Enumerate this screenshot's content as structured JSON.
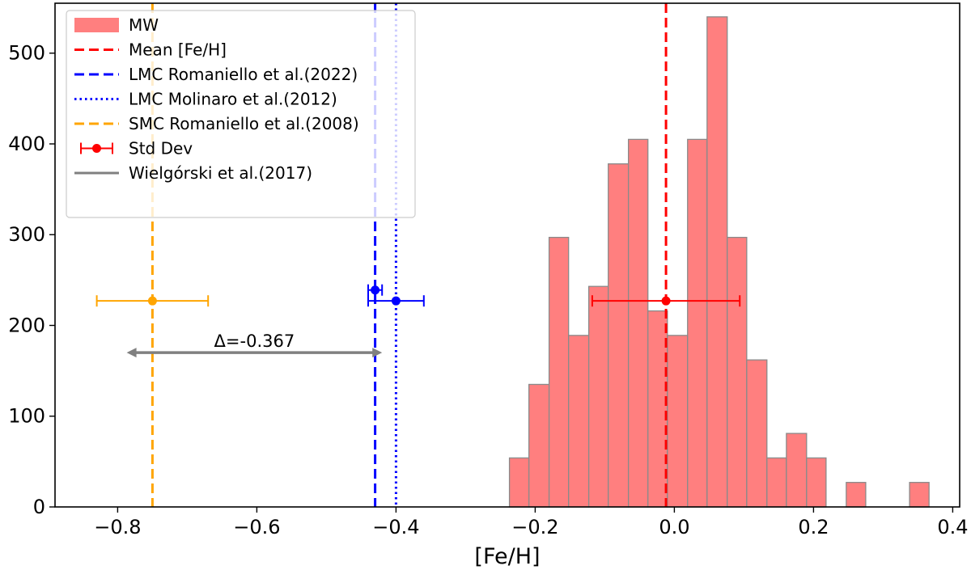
{
  "chart_data": {
    "type": "bar",
    "xlabel": "[Fe/H]",
    "ylabel": "",
    "xlim": [
      -0.89,
      0.41
    ],
    "ylim": [
      0,
      555
    ],
    "xticks": [
      -0.8,
      -0.6,
      -0.4,
      -0.2,
      0.0,
      0.2,
      0.4
    ],
    "xtick_labels": [
      "−0.8",
      "−0.6",
      "−0.4",
      "−0.2",
      "0.0",
      "0.2",
      "0.4"
    ],
    "yticks": [
      0,
      100,
      200,
      300,
      400,
      500
    ],
    "ytick_labels": [
      "0",
      "100",
      "200",
      "300",
      "400",
      "500"
    ],
    "histogram": {
      "name": "MW",
      "color": "#ff7f7f",
      "edge_color": "#8a8a8a",
      "bins": [
        {
          "left": -0.237,
          "right": -0.209,
          "count": 54
        },
        {
          "left": -0.209,
          "right": -0.18,
          "count": 135
        },
        {
          "left": -0.18,
          "right": -0.152,
          "count": 297
        },
        {
          "left": -0.152,
          "right": -0.123,
          "count": 189
        },
        {
          "left": -0.123,
          "right": -0.095,
          "count": 243
        },
        {
          "left": -0.095,
          "right": -0.066,
          "count": 378
        },
        {
          "left": -0.066,
          "right": -0.038,
          "count": 405
        },
        {
          "left": -0.038,
          "right": -0.01,
          "count": 216
        },
        {
          "left": -0.01,
          "right": 0.019,
          "count": 189
        },
        {
          "left": 0.019,
          "right": 0.047,
          "count": 405
        },
        {
          "left": 0.047,
          "right": 0.076,
          "count": 540
        },
        {
          "left": 0.076,
          "right": 0.104,
          "count": 297
        },
        {
          "left": 0.104,
          "right": 0.133,
          "count": 162
        },
        {
          "left": 0.133,
          "right": 0.161,
          "count": 54
        },
        {
          "left": 0.161,
          "right": 0.19,
          "count": 81
        },
        {
          "left": 0.19,
          "right": 0.218,
          "count": 54
        },
        {
          "left": 0.247,
          "right": 0.275,
          "count": 27
        },
        {
          "left": 0.338,
          "right": 0.366,
          "count": 27
        }
      ]
    },
    "vlines": [
      {
        "name": "Mean [Fe/H]",
        "x": -0.012,
        "color": "#ff0000",
        "style": "dashed"
      },
      {
        "name": "LMC Romaniello et al.(2022)",
        "x": -0.43,
        "color": "#0000ff",
        "style": "dashed"
      },
      {
        "name": "LMC Molinaro et al.(2012)",
        "x": -0.4,
        "color": "#0000ff",
        "style": "dotted"
      },
      {
        "name": "SMC Romaniello et al.(2008)",
        "x": -0.75,
        "color": "#ffa500",
        "style": "dashed"
      }
    ],
    "errorbars": [
      {
        "name": "MW",
        "x": -0.012,
        "y": 227,
        "xerr": 0.106,
        "color": "#ff0000"
      },
      {
        "name": "LMC Romaniello et al.(2022)",
        "x": -0.43,
        "y": 239,
        "xerr": 0.01,
        "color": "#0000ff"
      },
      {
        "name": "LMC Molinaro et al.(2012)",
        "x": -0.4,
        "y": 227,
        "xerr": 0.04,
        "color": "#0000ff"
      },
      {
        "name": "SMC Romaniello et al.(2008)",
        "x": -0.75,
        "y": 227,
        "xerr": 0.08,
        "color": "#ffa500"
      }
    ],
    "offset_arrow": {
      "name": "Wielgórski et al.(2017)",
      "x_from": -0.42,
      "x_to": -0.787,
      "y": 170,
      "label": "Δ=-0.367",
      "color": "#808080"
    },
    "legend": {
      "placement": "top-left",
      "entries": [
        {
          "label": "MW",
          "kind": "patch",
          "color": "#ff7f7f"
        },
        {
          "label": "Mean [Fe/H]",
          "kind": "dashed",
          "color": "#ff0000"
        },
        {
          "label": "LMC Romaniello et al.(2022)",
          "kind": "dashed",
          "color": "#0000ff"
        },
        {
          "label": "LMC Molinaro et al.(2012)",
          "kind": "dotted",
          "color": "#0000ff"
        },
        {
          "label": "SMC Romaniello et al.(2008)",
          "kind": "dashed",
          "color": "#ffa500"
        },
        {
          "label": "Std Dev",
          "kind": "errorbar",
          "color": "#ff0000"
        },
        {
          "label": "Wielgórski et al.(2017)",
          "kind": "solid",
          "color": "#808080"
        }
      ]
    }
  }
}
